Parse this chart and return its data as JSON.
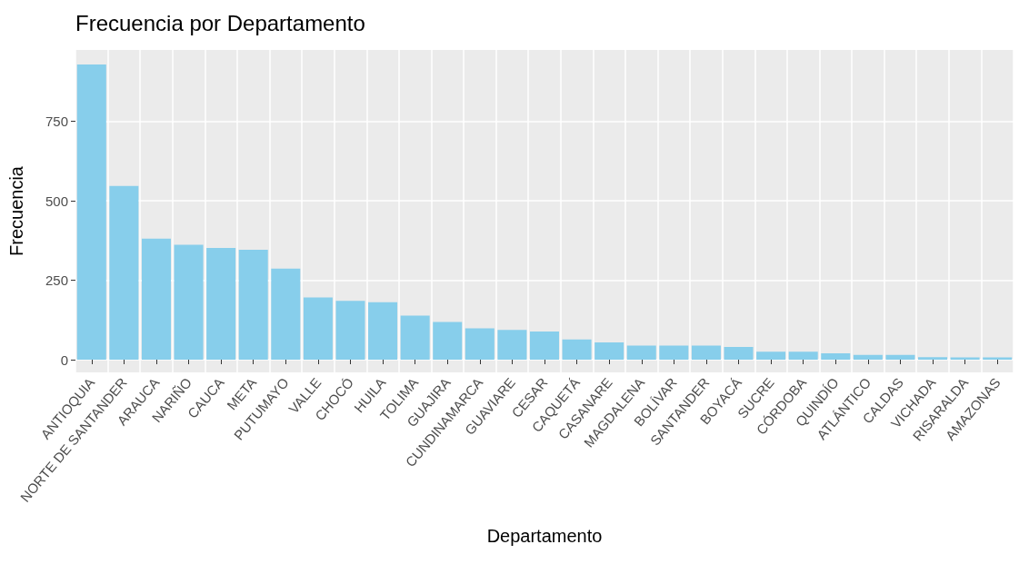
{
  "chart_data": {
    "type": "bar",
    "title": "Frecuencia por Departamento",
    "xlabel": "Departamento",
    "ylabel": "Frecuencia",
    "categories": [
      "ANTIOQUIA",
      "NORTE DE SANTANDER",
      "ARAUCA",
      "NARIÑO",
      "CAUCA",
      "META",
      "PUTUMAYO",
      "VALLE",
      "CHOCÓ",
      "HUILA",
      "TOLIMA",
      "GUAJIRA",
      "CUNDINAMARCA",
      "GUAVIARE",
      "CESAR",
      "CAQUETÁ",
      "CASANARE",
      "MAGDALENA",
      "BOLÍVAR",
      "SANTANDER",
      "BOYACÁ",
      "SUCRE",
      "CÓRDOBA",
      "QUINDÍO",
      "ATLÁNTICO",
      "CALDAS",
      "VICHADA",
      "RISARALDA",
      "AMAZONAS"
    ],
    "values": [
      929,
      547,
      381,
      362,
      352,
      346,
      287,
      196,
      185,
      181,
      139,
      119,
      99,
      94,
      89,
      64,
      54,
      44,
      44,
      44,
      40,
      25,
      25,
      20,
      15,
      15,
      8,
      7,
      7
    ],
    "color": "#87ceeb",
    "ylim": [
      -40,
      975
    ],
    "yticks": [
      0,
      250,
      500,
      750
    ],
    "grid": true
  }
}
